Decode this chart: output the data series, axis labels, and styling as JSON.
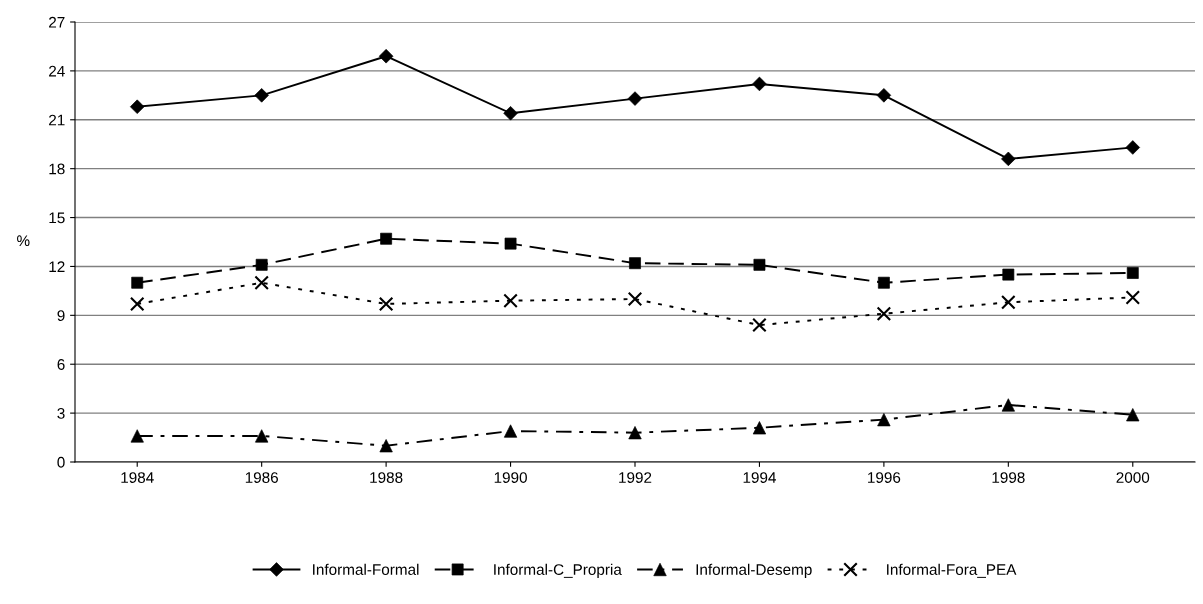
{
  "chart_data": {
    "type": "line",
    "ylabel": "%",
    "categories": [
      "1984",
      "1986",
      "1988",
      "1990",
      "1992",
      "1994",
      "1996",
      "1998",
      "2000"
    ],
    "series": [
      {
        "name": "Informal-Formal",
        "color": "#000000",
        "marker": "diamond",
        "line_style": "solid",
        "values": [
          21.8,
          22.5,
          24.9,
          21.4,
          22.3,
          23.2,
          22.5,
          18.6,
          19.3
        ]
      },
      {
        "name": "Informal-C_Propria",
        "color": "#000000",
        "marker": "square",
        "line_style": "dashed",
        "values": [
          11.0,
          12.1,
          13.7,
          13.4,
          12.2,
          12.1,
          11.0,
          11.5,
          11.6
        ]
      },
      {
        "name": "Informal-Desemp",
        "color": "#000000",
        "marker": "triangle",
        "line_style": "dashdot",
        "values": [
          1.6,
          1.6,
          1.0,
          1.9,
          1.8,
          2.1,
          2.6,
          3.5,
          2.9
        ]
      },
      {
        "name": "Informal-Fora_PEA",
        "color": "#000000",
        "marker": "cross",
        "line_style": "dotted",
        "values": [
          9.7,
          11.0,
          9.7,
          9.9,
          10.0,
          8.4,
          9.1,
          9.8,
          10.1
        ]
      }
    ],
    "ylim": [
      0,
      27
    ],
    "yticks": [
      0,
      3,
      6,
      9,
      12,
      15,
      18,
      21,
      24,
      27
    ],
    "grid": "y",
    "legend": "bottom"
  }
}
